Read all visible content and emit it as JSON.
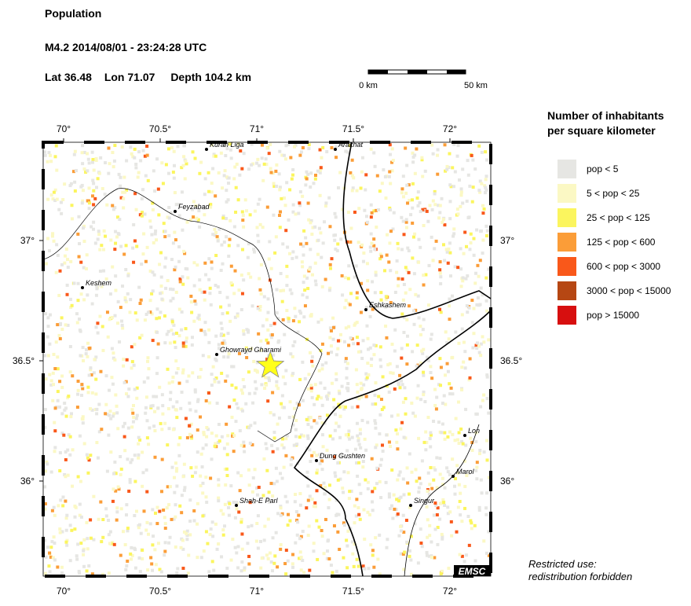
{
  "header": {
    "title": "Population",
    "event": "M4.2  2014/08/01 - 23:24:28 UTC",
    "lat_label": "Lat",
    "lat": 36.48,
    "lon_label": "Lon",
    "lon": 71.07,
    "depth_label": "Depth",
    "depth": 104.2,
    "depth_unit": "km"
  },
  "scale_bar": {
    "start": "0 km",
    "end": "50 km"
  },
  "map": {
    "lon_ticks": [
      {
        "value": 70,
        "label": "70°"
      },
      {
        "value": 70.5,
        "label": "70.5°"
      },
      {
        "value": 71,
        "label": "71°"
      },
      {
        "value": 71.5,
        "label": "71.5°"
      },
      {
        "value": 72,
        "label": "72°"
      }
    ],
    "lat_ticks": [
      {
        "value": 37,
        "label": "37°"
      },
      {
        "value": 36.5,
        "label": "36.5°"
      },
      {
        "value": 36,
        "label": "36°"
      }
    ],
    "cities": [
      "Kuran Liga",
      "Arakhat",
      "Feyzabad",
      "Keshem",
      "Eshkashem",
      "Ghowrayd Gharami",
      "Lon",
      "Dung Gushten",
      "Marol",
      "Singur",
      "Shah-E Parl"
    ],
    "logo": "EMSC"
  },
  "legend": {
    "title": [
      "Number of inhabitants",
      "per square kilometer"
    ],
    "items": [
      {
        "label": "pop < 5",
        "color": "#e6e6e3"
      },
      {
        "label": "5 < pop < 25",
        "color": "#fbf8c4"
      },
      {
        "label": "25 < pop < 125",
        "color": "#fbf55e"
      },
      {
        "label": "125 < pop < 600",
        "color": "#fb9d38"
      },
      {
        "label": "600 < pop < 3000",
        "color": "#f9581a"
      },
      {
        "label": "3000 < pop < 15000",
        "color": "#b64713"
      },
      {
        "label": "pop > 15000",
        "color": "#d70f0f"
      }
    ]
  },
  "footer": [
    "Restricted use:",
    "redistribution forbidden"
  ]
}
